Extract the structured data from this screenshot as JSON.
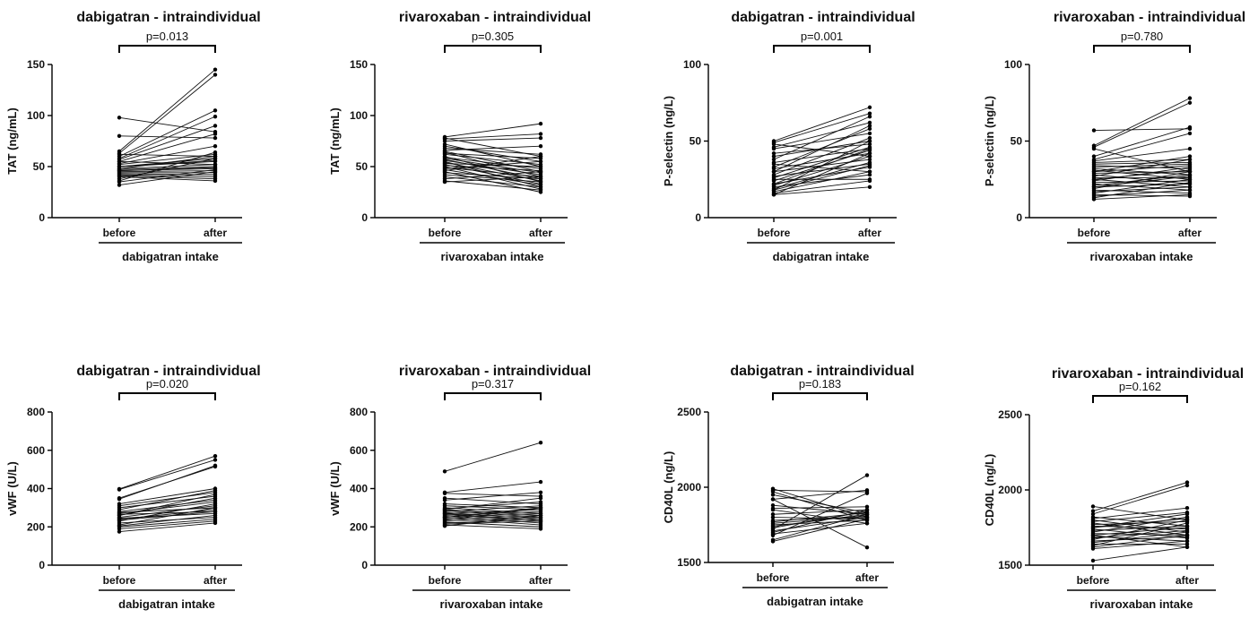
{
  "chart_data": [
    {
      "type": "line",
      "title": "dabigatran - intraindividual",
      "p_value": "p=0.013",
      "ylabel": "TAT (ng/mL)",
      "xlabel": "dabigatran intake",
      "categories": [
        "before",
        "after"
      ],
      "ylim": [
        0,
        150
      ],
      "yticks": [
        0,
        50,
        100,
        150
      ],
      "pairs": [
        [
          98,
          84
        ],
        [
          80,
          78
        ],
        [
          65,
          145
        ],
        [
          63,
          140
        ],
        [
          62,
          60
        ],
        [
          60,
          105
        ],
        [
          58,
          99
        ],
        [
          57,
          90
        ],
        [
          55,
          82
        ],
        [
          53,
          70
        ],
        [
          52,
          62
        ],
        [
          50,
          58
        ],
        [
          50,
          55
        ],
        [
          48,
          52
        ],
        [
          47,
          50
        ],
        [
          46,
          48
        ],
        [
          45,
          46
        ],
        [
          44,
          44
        ],
        [
          43,
          42
        ],
        [
          42,
          40
        ],
        [
          41,
          38
        ],
        [
          40,
          36
        ],
        [
          38,
          58
        ],
        [
          36,
          64
        ],
        [
          35,
          47
        ],
        [
          32,
          45
        ],
        [
          55,
          52
        ],
        [
          50,
          56
        ],
        [
          48,
          60
        ],
        [
          46,
          49
        ]
      ]
    },
    {
      "type": "line",
      "title": "rivaroxaban - intraindividual",
      "p_value": "p=0.305",
      "ylabel": "TAT (ng/mL)",
      "xlabel": "rivaroxaban intake",
      "categories": [
        "before",
        "after"
      ],
      "ylim": [
        0,
        150
      ],
      "yticks": [
        0,
        50,
        100,
        150
      ],
      "pairs": [
        [
          79,
          92
        ],
        [
          78,
          60
        ],
        [
          77,
          82
        ],
        [
          75,
          78
        ],
        [
          72,
          50
        ],
        [
          70,
          55
        ],
        [
          68,
          62
        ],
        [
          66,
          70
        ],
        [
          65,
          45
        ],
        [
          64,
          40
        ],
        [
          63,
          58
        ],
        [
          62,
          52
        ],
        [
          60,
          35
        ],
        [
          59,
          48
        ],
        [
          58,
          44
        ],
        [
          57,
          38
        ],
        [
          56,
          42
        ],
        [
          55,
          30
        ],
        [
          54,
          36
        ],
        [
          53,
          50
        ],
        [
          52,
          33
        ],
        [
          51,
          46
        ],
        [
          50,
          28
        ],
        [
          49,
          40
        ],
        [
          48,
          55
        ],
        [
          47,
          32
        ],
        [
          46,
          60
        ],
        [
          45,
          25
        ],
        [
          44,
          38
        ],
        [
          42,
          35
        ],
        [
          40,
          30
        ],
        [
          38,
          45
        ],
        [
          36,
          27
        ],
        [
          35,
          40
        ]
      ]
    },
    {
      "type": "line",
      "title": "dabigatran - intraindividual",
      "p_value": "p=0.001",
      "ylabel": "P-selectin (ng/L)",
      "xlabel": "dabigatran intake",
      "categories": [
        "before",
        "after"
      ],
      "ylim": [
        0,
        100
      ],
      "yticks": [
        0,
        50,
        100
      ],
      "pairs": [
        [
          50,
          72
        ],
        [
          49,
          68
        ],
        [
          48,
          40
        ],
        [
          46,
          62
        ],
        [
          45,
          55
        ],
        [
          42,
          48
        ],
        [
          40,
          50
        ],
        [
          38,
          66
        ],
        [
          36,
          45
        ],
        [
          35,
          30
        ],
        [
          33,
          58
        ],
        [
          32,
          42
        ],
        [
          30,
          38
        ],
        [
          28,
          52
        ],
        [
          27,
          35
        ],
        [
          26,
          46
        ],
        [
          25,
          25
        ],
        [
          24,
          44
        ],
        [
          22,
          33
        ],
        [
          21,
          40
        ],
        [
          20,
          28
        ],
        [
          19,
          36
        ],
        [
          18,
          50
        ],
        [
          17,
          30
        ],
        [
          16,
          24
        ],
        [
          15,
          42
        ],
        [
          15,
          20
        ],
        [
          30,
          60
        ],
        [
          22,
          45
        ],
        [
          18,
          34
        ]
      ]
    },
    {
      "type": "line",
      "title": "rivaroxaban - intraindividual",
      "p_value": "p=0.780",
      "ylabel": "P-selectin (ng/L)",
      "xlabel": "rivaroxaban intake",
      "categories": [
        "before",
        "after"
      ],
      "ylim": [
        0,
        100
      ],
      "yticks": [
        0,
        50,
        100
      ],
      "pairs": [
        [
          57,
          58
        ],
        [
          47,
          78
        ],
        [
          46,
          75
        ],
        [
          45,
          30
        ],
        [
          40,
          59
        ],
        [
          38,
          55
        ],
        [
          37,
          45
        ],
        [
          36,
          38
        ],
        [
          35,
          36
        ],
        [
          34,
          32
        ],
        [
          33,
          35
        ],
        [
          32,
          28
        ],
        [
          31,
          25
        ],
        [
          30,
          34
        ],
        [
          29,
          30
        ],
        [
          28,
          22
        ],
        [
          27,
          38
        ],
        [
          26,
          26
        ],
        [
          25,
          20
        ],
        [
          24,
          33
        ],
        [
          23,
          24
        ],
        [
          22,
          18
        ],
        [
          21,
          28
        ],
        [
          20,
          22
        ],
        [
          19,
          30
        ],
        [
          18,
          16
        ],
        [
          17,
          20
        ],
        [
          16,
          25
        ],
        [
          15,
          14
        ],
        [
          14,
          18
        ],
        [
          13,
          23
        ],
        [
          12,
          15
        ],
        [
          30,
          40
        ],
        [
          25,
          31
        ],
        [
          20,
          27
        ]
      ]
    },
    {
      "type": "line",
      "title": "dabigatran - intraindividual",
      "p_value": "p=0.020",
      "ylabel": "vWF (U/L)",
      "xlabel": "dabigatran intake",
      "categories": [
        "before",
        "after"
      ],
      "ylim": [
        0,
        800
      ],
      "yticks": [
        0,
        200,
        400,
        600,
        800
      ],
      "pairs": [
        [
          398,
          570
        ],
        [
          395,
          550
        ],
        [
          350,
          515
        ],
        [
          345,
          520
        ],
        [
          320,
          400
        ],
        [
          310,
          380
        ],
        [
          300,
          360
        ],
        [
          290,
          390
        ],
        [
          280,
          340
        ],
        [
          275,
          300
        ],
        [
          270,
          330
        ],
        [
          265,
          280
        ],
        [
          260,
          350
        ],
        [
          250,
          310
        ],
        [
          245,
          270
        ],
        [
          240,
          290
        ],
        [
          230,
          320
        ],
        [
          220,
          250
        ],
        [
          210,
          300
        ],
        [
          205,
          260
        ],
        [
          200,
          240
        ],
        [
          190,
          230
        ],
        [
          175,
          220
        ],
        [
          260,
          370
        ],
        [
          235,
          280
        ]
      ]
    },
    {
      "type": "line",
      "title": "rivaroxaban - intraindividual",
      "p_value": "p=0.317",
      "ylabel": "vWF (U/L)",
      "xlabel": "rivaroxaban intake",
      "categories": [
        "before",
        "after"
      ],
      "ylim": [
        0,
        800
      ],
      "yticks": [
        0,
        200,
        400,
        600,
        800
      ],
      "pairs": [
        [
          490,
          640
        ],
        [
          380,
          435
        ],
        [
          375,
          360
        ],
        [
          350,
          320
        ],
        [
          340,
          380
        ],
        [
          320,
          300
        ],
        [
          310,
          290
        ],
        [
          300,
          270
        ],
        [
          295,
          330
        ],
        [
          290,
          260
        ],
        [
          285,
          250
        ],
        [
          280,
          310
        ],
        [
          275,
          240
        ],
        [
          270,
          290
        ],
        [
          265,
          230
        ],
        [
          260,
          280
        ],
        [
          255,
          220
        ],
        [
          250,
          270
        ],
        [
          245,
          210
        ],
        [
          240,
          260
        ],
        [
          235,
          300
        ],
        [
          230,
          250
        ],
        [
          225,
          200
        ],
        [
          220,
          240
        ],
        [
          215,
          230
        ],
        [
          210,
          190
        ],
        [
          205,
          260
        ],
        [
          290,
          350
        ],
        [
          270,
          230
        ],
        [
          250,
          300
        ]
      ]
    },
    {
      "type": "line",
      "title": "dabigatran - intraindividual",
      "p_value": "p=0.183",
      "ylabel": "CD40L (ng/L)",
      "xlabel": "dabigatran intake",
      "categories": [
        "before",
        "after"
      ],
      "ylim": [
        1500,
        2500
      ],
      "yticks": [
        1500,
        2000,
        2500
      ],
      "pairs": [
        [
          1990,
          1800
        ],
        [
          1980,
          1970
        ],
        [
          1970,
          1780
        ],
        [
          1950,
          1830
        ],
        [
          1920,
          1980
        ],
        [
          1880,
          1820
        ],
        [
          1850,
          1760
        ],
        [
          1820,
          1850
        ],
        [
          1800,
          1790
        ],
        [
          1780,
          1800
        ],
        [
          1770,
          1830
        ],
        [
          1760,
          1810
        ],
        [
          1750,
          1780
        ],
        [
          1740,
          1820
        ],
        [
          1730,
          1840
        ],
        [
          1720,
          2080
        ],
        [
          1710,
          1800
        ],
        [
          1700,
          1850
        ],
        [
          1690,
          1760
        ],
        [
          1680,
          1960
        ],
        [
          1650,
          1820
        ],
        [
          1640,
          1790
        ],
        [
          1920,
          1600
        ],
        [
          1860,
          1870
        ]
      ]
    },
    {
      "type": "line",
      "title": "rivaroxaban - intraindividual",
      "p_value": "p=0.162",
      "ylabel": "CD40L (ng/L)",
      "xlabel": "rivaroxaban intake",
      "categories": [
        "before",
        "after"
      ],
      "ylim": [
        1500,
        2500
      ],
      "yticks": [
        1500,
        2000,
        2500
      ],
      "pairs": [
        [
          1890,
          1800
        ],
        [
          1860,
          2050
        ],
        [
          1840,
          2030
        ],
        [
          1820,
          1760
        ],
        [
          1810,
          1880
        ],
        [
          1800,
          1720
        ],
        [
          1790,
          1850
        ],
        [
          1780,
          1700
        ],
        [
          1770,
          1790
        ],
        [
          1760,
          1740
        ],
        [
          1750,
          1810
        ],
        [
          1740,
          1680
        ],
        [
          1730,
          1760
        ],
        [
          1720,
          1820
        ],
        [
          1710,
          1700
        ],
        [
          1700,
          1750
        ],
        [
          1690,
          1660
        ],
        [
          1680,
          1730
        ],
        [
          1670,
          1800
        ],
        [
          1660,
          1690
        ],
        [
          1650,
          1720
        ],
        [
          1640,
          1640
        ],
        [
          1630,
          1780
        ],
        [
          1620,
          1700
        ],
        [
          1610,
          1660
        ],
        [
          1530,
          1620
        ],
        [
          1750,
          1840
        ],
        [
          1700,
          1620
        ]
      ]
    }
  ]
}
